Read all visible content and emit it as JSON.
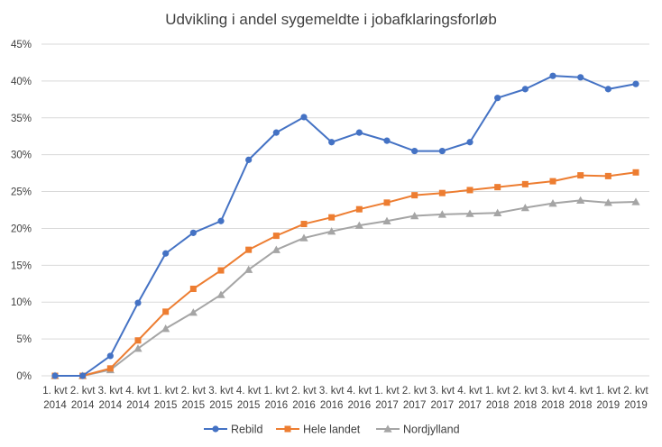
{
  "chart_data": {
    "type": "line",
    "title": "Udvikling i andel sygemeldte i jobafklaringsforløb",
    "xlabel": "",
    "ylabel": "",
    "ylim": [
      0,
      45
    ],
    "y_ticks": [
      "0%",
      "5%",
      "10%",
      "15%",
      "20%",
      "25%",
      "30%",
      "35%",
      "40%",
      "45%"
    ],
    "y_tick_values": [
      0,
      5,
      10,
      15,
      20,
      25,
      30,
      35,
      40,
      45
    ],
    "grid": true,
    "legend_position": "bottom",
    "categories": [
      [
        "1. kvt",
        "2014"
      ],
      [
        "2. kvt",
        "2014"
      ],
      [
        "3. kvt",
        "2014"
      ],
      [
        "4. kvt",
        "2014"
      ],
      [
        "1. kvt",
        "2015"
      ],
      [
        "2. kvt",
        "2015"
      ],
      [
        "3. kvt",
        "2015"
      ],
      [
        "4. kvt",
        "2015"
      ],
      [
        "1. kvt",
        "2016"
      ],
      [
        "2. kvt",
        "2016"
      ],
      [
        "3. kvt",
        "2016"
      ],
      [
        "4. kvt",
        "2016"
      ],
      [
        "1. kvt",
        "2017"
      ],
      [
        "2. kvt",
        "2017"
      ],
      [
        "3. kvt",
        "2017"
      ],
      [
        "4. kvt",
        "2017"
      ],
      [
        "1. kvt",
        "2018"
      ],
      [
        "2. kvt",
        "2018"
      ],
      [
        "3. kvt",
        "2018"
      ],
      [
        "4. kvt",
        "2018"
      ],
      [
        "1. kvt",
        "2019"
      ],
      [
        "2. kvt",
        "2019"
      ]
    ],
    "series": [
      {
        "name": "Rebild",
        "color": "#4472C4",
        "marker": "circle",
        "values": [
          0,
          0,
          2.7,
          9.9,
          16.6,
          19.4,
          21.0,
          29.3,
          33.0,
          35.1,
          31.7,
          33.0,
          31.9,
          30.5,
          30.5,
          31.7,
          37.7,
          38.9,
          40.7,
          40.5,
          38.9,
          39.6
        ]
      },
      {
        "name": "Hele landet",
        "color": "#ED7D31",
        "marker": "square",
        "values": [
          0,
          0,
          1.0,
          4.8,
          8.7,
          11.8,
          14.3,
          17.1,
          19.0,
          20.6,
          21.5,
          22.6,
          23.5,
          24.5,
          24.8,
          25.2,
          25.6,
          26.0,
          26.4,
          27.2,
          27.1,
          27.6
        ]
      },
      {
        "name": "Nordjylland",
        "color": "#A5A5A5",
        "marker": "triangle",
        "values": [
          0,
          0,
          0.8,
          3.7,
          6.4,
          8.6,
          11.0,
          14.4,
          17.1,
          18.7,
          19.6,
          20.4,
          21.0,
          21.7,
          21.9,
          22.0,
          22.1,
          22.8,
          23.4,
          23.8,
          23.5,
          23.6
        ]
      }
    ]
  }
}
